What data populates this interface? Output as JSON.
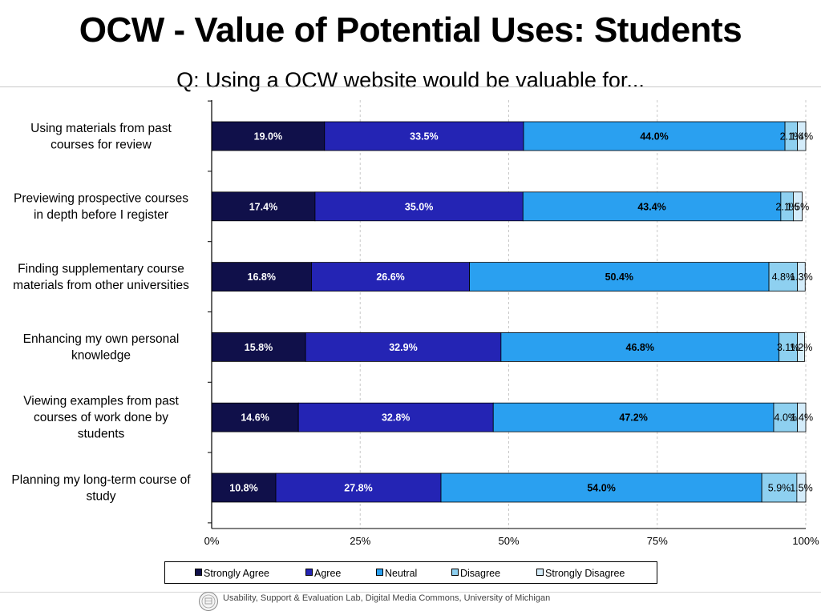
{
  "title": "OCW - Value of Potential Uses: Students",
  "subtitle": "Q: Using a OCW website would be valuable for...",
  "footer": "Usability, Support & Evaluation Lab, Digital Media Commons, University of Michigan",
  "chart_data": {
    "type": "bar",
    "orientation": "horizontal",
    "stacked": "percent",
    "categories": [
      [
        "Using materials from past",
        "courses for review"
      ],
      [
        "Previewing prospective courses",
        "in depth before I register"
      ],
      [
        "Finding supplementary course",
        "materials from other universities"
      ],
      [
        "Enhancing my own personal",
        "knowledge"
      ],
      [
        "Viewing examples from past",
        "courses of work done by",
        "students"
      ],
      [
        "Planning my long-term course of",
        "study"
      ]
    ],
    "series": [
      {
        "name": "Strongly Agree",
        "color": "#10104a",
        "values": [
          19.0,
          17.4,
          16.8,
          15.8,
          14.6,
          10.8
        ],
        "labels": [
          "19.0%",
          "17.4%",
          "16.8%",
          "15.8%",
          "14.6%",
          "10.8%"
        ]
      },
      {
        "name": "Agree",
        "color": "#2424b4",
        "values": [
          33.5,
          35.0,
          26.6,
          32.9,
          32.8,
          27.8
        ],
        "labels": [
          "33.5%",
          "35.0%",
          "26.6%",
          "32.9%",
          "32.8%",
          "27.8%"
        ]
      },
      {
        "name": "Neutral",
        "color": "#2aa0f0",
        "values": [
          44.0,
          43.4,
          50.4,
          46.8,
          47.2,
          54.0
        ],
        "labels": [
          "44.0%",
          "43.4%",
          "50.4%",
          "46.8%",
          "47.2%",
          "54.0%"
        ]
      },
      {
        "name": "Disagree",
        "color": "#8ed0f0",
        "values": [
          2.1,
          2.1,
          4.8,
          3.1,
          4.0,
          5.9
        ],
        "labels": [
          "2.1%",
          "2.1%",
          "4.8%",
          "3.1%",
          "4.0%",
          "5.9%"
        ]
      },
      {
        "name": "Strongly Disagree",
        "color": "#d4ecfa",
        "values": [
          1.4,
          1.5,
          1.3,
          1.2,
          1.4,
          1.5
        ],
        "labels": [
          "1.4%",
          "1.5%",
          "1.3%",
          "1.2%",
          "1.4%",
          "1.5%"
        ]
      }
    ],
    "x_ticks": [
      "0%",
      "25%",
      "50%",
      "75%",
      "100%"
    ],
    "xlim": [
      0,
      100
    ],
    "grid": true,
    "legend_position": "bottom"
  }
}
